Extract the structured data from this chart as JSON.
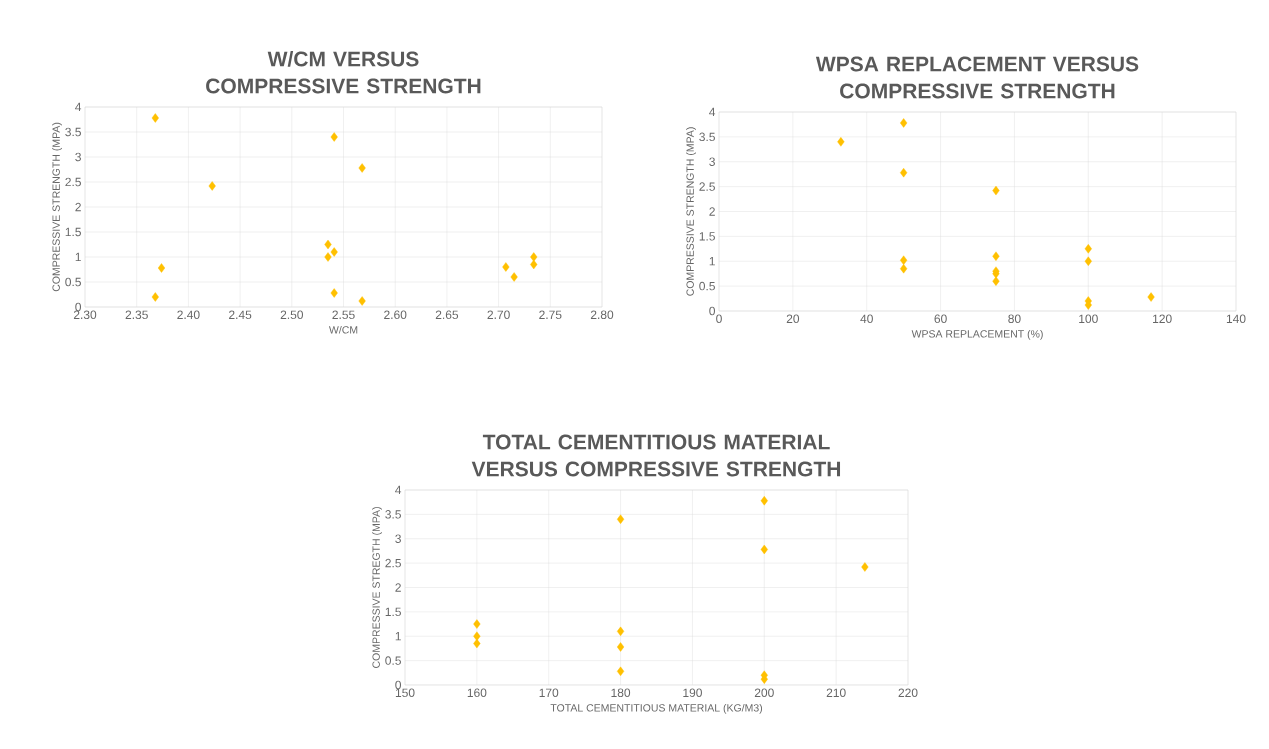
{
  "chart_data": [
    {
      "type": "scatter",
      "title": "W/CM VERSUS COMPRESSIVE STRENGTH",
      "xlabel": "W/CM",
      "ylabel": "COMPRESSIVE STRENGTH (MPA)",
      "x": [
        2.368,
        2.541,
        2.568,
        2.423,
        2.535,
        2.535,
        2.541,
        2.374,
        2.368,
        2.541,
        2.568,
        2.707,
        2.715,
        2.734,
        2.734
      ],
      "values": [
        3.78,
        3.4,
        2.78,
        2.42,
        1.25,
        1.0,
        1.1,
        0.78,
        0.2,
        0.28,
        0.12,
        0.8,
        0.6,
        1.0,
        0.85
      ],
      "color": "#ffc000",
      "marker": "diamond",
      "grid": true,
      "xlim": [
        2.3,
        2.8
      ],
      "ylim": [
        0,
        4
      ],
      "xticks": [
        {
          "value": 2.3,
          "label": "2.30"
        },
        {
          "value": 2.35,
          "label": "2.35"
        },
        {
          "value": 2.4,
          "label": "2.40"
        },
        {
          "value": 2.45,
          "label": "2.45"
        },
        {
          "value": 2.5,
          "label": "2.50"
        },
        {
          "value": 2.55,
          "label": "2.55"
        },
        {
          "value": 2.6,
          "label": "2.60"
        },
        {
          "value": 2.65,
          "label": "2.65"
        },
        {
          "value": 2.7,
          "label": "2.70"
        },
        {
          "value": 2.75,
          "label": "2.75"
        },
        {
          "value": 2.8,
          "label": "2.80"
        }
      ],
      "yticks": [
        0,
        0.5,
        1,
        1.5,
        2,
        2.5,
        3,
        3.5,
        4
      ]
    },
    {
      "type": "scatter",
      "title": "WPSA REPLACEMENT VERSUS COMPRESSIVE STRENGTH",
      "xlabel": "WPSA REPLACEMENT (%)",
      "ylabel": "COMPRESSIVE STRENGTH (MPA)",
      "x": [
        33,
        50,
        50,
        75,
        50,
        50,
        75,
        75,
        75,
        75,
        100,
        100,
        100,
        100,
        117
      ],
      "values": [
        3.4,
        3.78,
        2.78,
        2.42,
        1.02,
        0.85,
        1.1,
        0.8,
        0.75,
        0.6,
        1.25,
        1.0,
        0.2,
        0.12,
        0.28
      ],
      "color": "#ffc000",
      "marker": "diamond",
      "grid": true,
      "xlim": [
        0,
        140
      ],
      "ylim": [
        0,
        4
      ],
      "xticks": [
        0,
        20,
        40,
        60,
        80,
        100,
        120,
        140
      ],
      "yticks": [
        0,
        0.5,
        1,
        1.5,
        2,
        2.5,
        3,
        3.5,
        4
      ]
    },
    {
      "type": "scatter",
      "title": "TOTAL CEMENTITIOUS MATERIAL VERSUS COMPRESSIVE STRENGTH",
      "xlabel": "TOTAL CEMENTITIOUS MATERIAL (KG/M3)",
      "ylabel": "COMPRESSIVE STREGTH (MPA)",
      "x": [
        160,
        160,
        160,
        180,
        180,
        180,
        180,
        200,
        200,
        200,
        200,
        214
      ],
      "values": [
        1.25,
        1.0,
        0.85,
        3.4,
        1.1,
        0.78,
        0.28,
        3.78,
        2.78,
        0.2,
        0.12,
        2.42
      ],
      "color": "#ffc000",
      "marker": "diamond",
      "grid": true,
      "xlim": [
        150,
        220
      ],
      "ylim": [
        0,
        4
      ],
      "xticks": [
        150,
        160,
        170,
        180,
        190,
        200,
        210,
        220
      ],
      "yticks": [
        0,
        0.5,
        1,
        1.5,
        2,
        2.5,
        3,
        3.5,
        4
      ]
    }
  ]
}
